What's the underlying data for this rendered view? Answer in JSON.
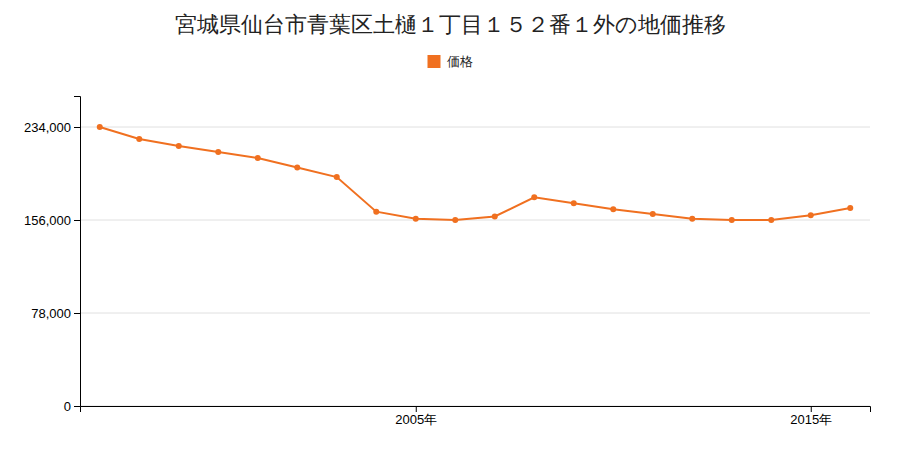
{
  "chart_data": {
    "type": "line",
    "title": "宮城県仙台市青葉区土樋１丁目１５２番１外の地価推移",
    "x": [
      1997,
      1998,
      1999,
      2000,
      2001,
      2002,
      2003,
      2004,
      2005,
      2006,
      2007,
      2008,
      2009,
      2010,
      2011,
      2012,
      2013,
      2014,
      2015,
      2016
    ],
    "xlim": [
      1996.5,
      2016.5
    ],
    "xticks": [
      {
        "value": 2005,
        "label": "2005年"
      },
      {
        "value": 2015,
        "label": "2015年"
      }
    ],
    "ylim": [
      0,
      260000
    ],
    "yticks": [
      0,
      {
        "value": 78000,
        "label": "78,000"
      },
      {
        "value": 156000,
        "label": "156,000"
      },
      {
        "value": 234000,
        "label": "234,000"
      }
    ],
    "grid": true,
    "legend": "top",
    "series": [
      {
        "name": "価格",
        "color": "#f07020",
        "marker": "circle",
        "values": [
          234000,
          224000,
          218000,
          213000,
          208000,
          200000,
          192000,
          163000,
          157000,
          156000,
          159000,
          175000,
          170000,
          165000,
          161000,
          157000,
          156000,
          156000,
          160000,
          166000
        ]
      }
    ]
  }
}
